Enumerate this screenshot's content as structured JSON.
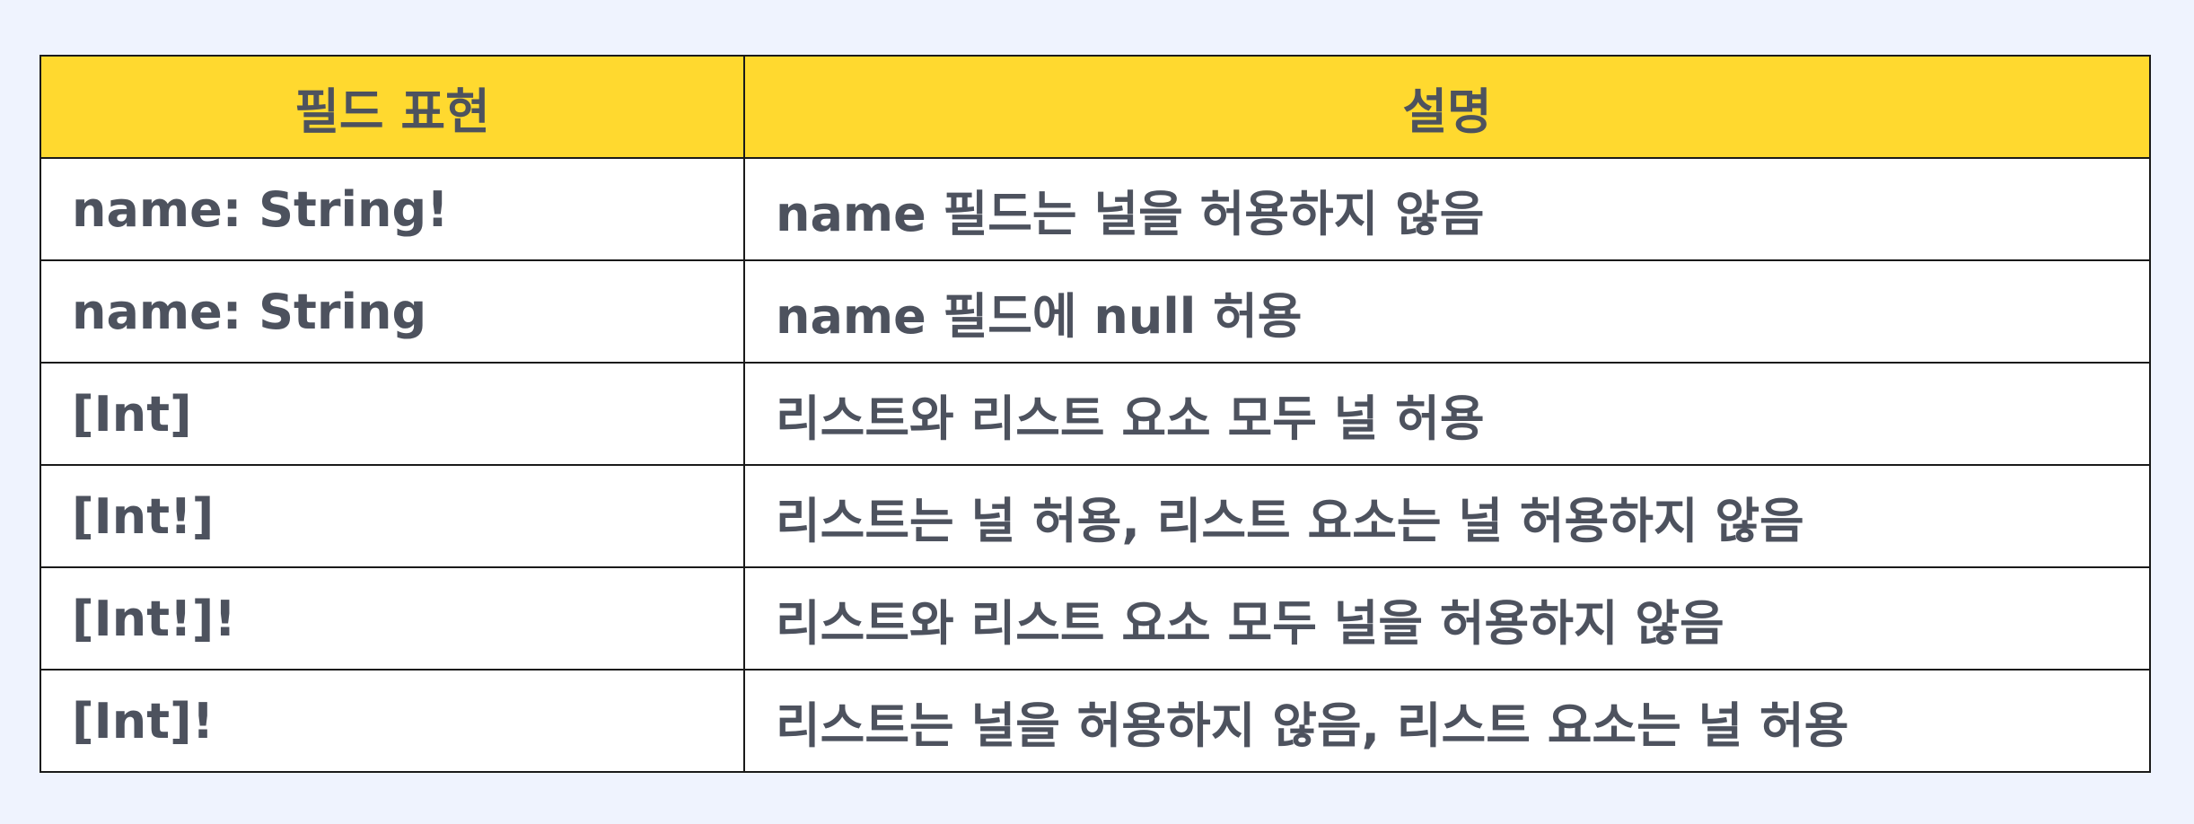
{
  "table": {
    "headers": [
      "필드 표현",
      "설명"
    ],
    "rows": [
      [
        "name: String!",
        "name 필드는 널을 허용하지 않음"
      ],
      [
        "name: String",
        "name 필드에 null 허용"
      ],
      [
        "[Int]",
        "리스트와 리스트 요소 모두 널 허용"
      ],
      [
        "[Int!]",
        "리스트는 널 허용, 리스트 요소는 널 허용하지 않음"
      ],
      [
        "[Int!]!",
        "리스트와 리스트 요소 모두 널을 허용하지 않음"
      ],
      [
        "[Int]!",
        "리스트는 널을 허용하지 않음, 리스트 요소는 널 허용"
      ]
    ]
  },
  "colors": {
    "header_bg": "#ffd92f",
    "page_bg": "#eff3fe",
    "text": "#4d525e",
    "border": "#1a1a1a"
  }
}
